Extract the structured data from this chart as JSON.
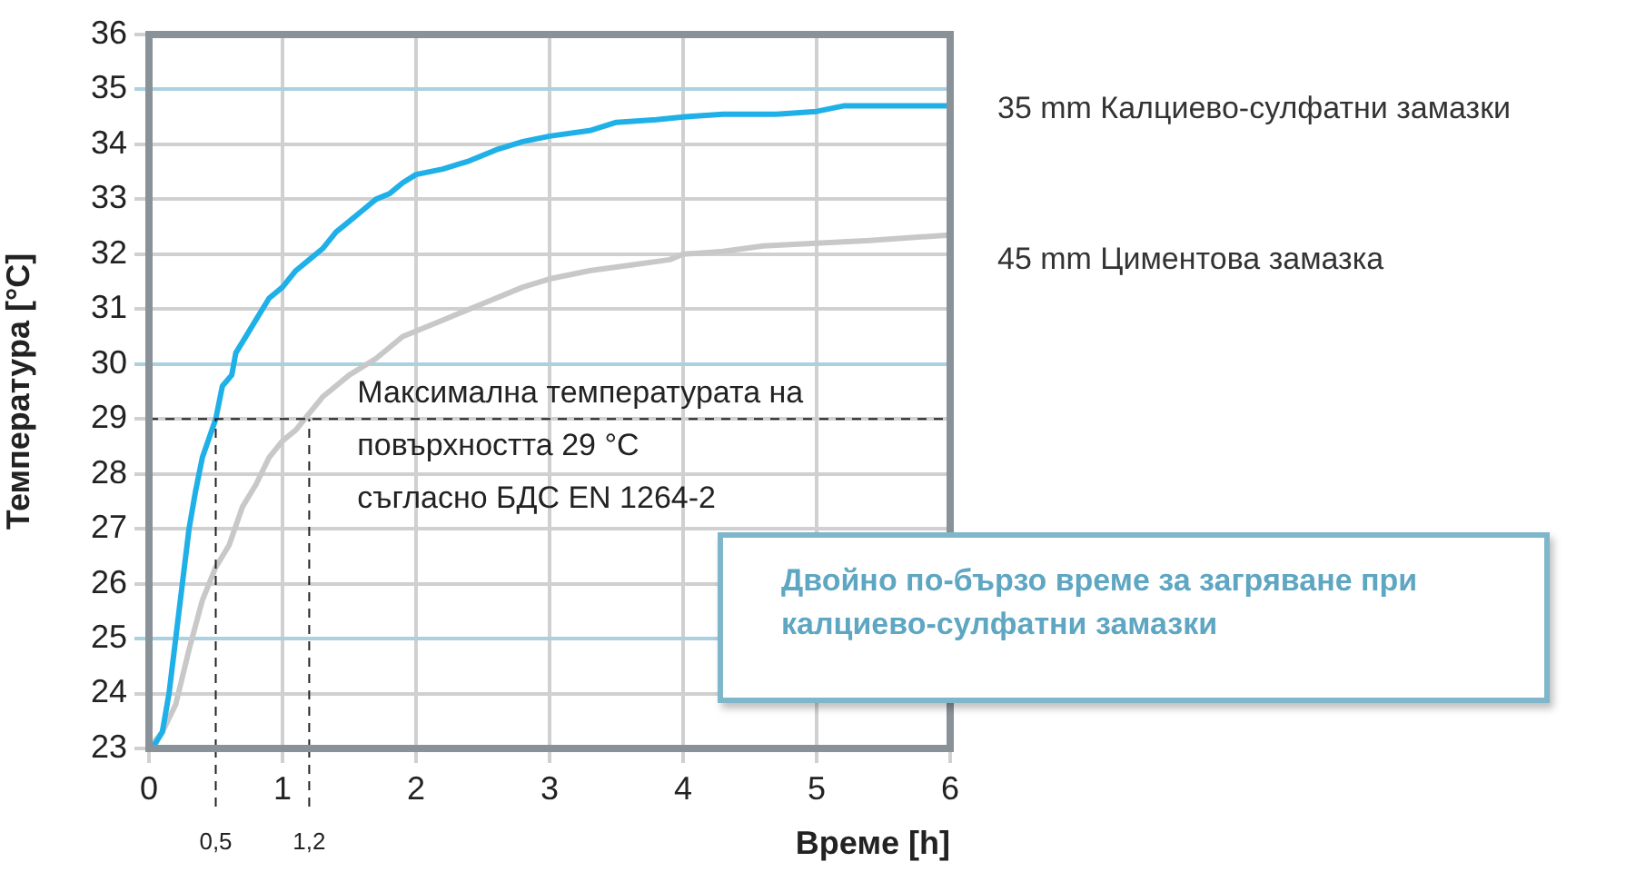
{
  "chart_data": {
    "type": "line",
    "ylabel": "Температура [°C]",
    "xlabel": "Време [h]",
    "xlim": [
      0,
      6
    ],
    "xticks": [
      0,
      1,
      2,
      3,
      4,
      5,
      6
    ],
    "ylim": [
      23,
      36
    ],
    "yticks": [
      23,
      24,
      25,
      26,
      27,
      28,
      29,
      30,
      31,
      32,
      33,
      34,
      35,
      36
    ],
    "grid": true,
    "legend": false,
    "marker": "none",
    "line_style": "solid",
    "series": [
      {
        "name": "35 mm Калциево-сулфатни замазки",
        "color": "#1fb0e8",
        "x": [
          0,
          0.05,
          0.1,
          0.15,
          0.2,
          0.25,
          0.3,
          0.35,
          0.4,
          0.5,
          0.55,
          0.62,
          0.65,
          0.7,
          0.8,
          0.9,
          1.0,
          1.1,
          1.2,
          1.3,
          1.4,
          1.5,
          1.6,
          1.7,
          1.8,
          1.9,
          2.0,
          2.2,
          2.4,
          2.6,
          2.8,
          3.0,
          3.3,
          3.5,
          3.8,
          4.0,
          4.3,
          4.7,
          5.0,
          5.2,
          6.0
        ],
        "values": [
          23.0,
          23.1,
          23.3,
          24.0,
          25.0,
          26.0,
          27.0,
          27.7,
          28.3,
          29.0,
          29.6,
          29.8,
          30.2,
          30.4,
          30.8,
          31.2,
          31.4,
          31.7,
          31.9,
          32.1,
          32.4,
          32.6,
          32.8,
          33.0,
          33.1,
          33.3,
          33.45,
          33.55,
          33.7,
          33.9,
          34.05,
          34.15,
          34.25,
          34.4,
          34.45,
          34.5,
          34.55,
          34.55,
          34.6,
          34.7,
          34.7
        ]
      },
      {
        "name": "45 mm Циментова замазка",
        "color": "#c8c8c8",
        "x": [
          0,
          0.1,
          0.2,
          0.3,
          0.4,
          0.5,
          0.6,
          0.7,
          0.8,
          0.9,
          1.0,
          1.1,
          1.2,
          1.3,
          1.5,
          1.7,
          1.9,
          2.0,
          2.2,
          2.5,
          2.8,
          3.0,
          3.3,
          3.6,
          3.9,
          4.0,
          4.3,
          4.6,
          5.0,
          5.4,
          6.0
        ],
        "values": [
          23.0,
          23.3,
          23.8,
          24.8,
          25.7,
          26.3,
          26.7,
          27.4,
          27.8,
          28.3,
          28.6,
          28.8,
          29.1,
          29.4,
          29.8,
          30.1,
          30.5,
          30.6,
          30.8,
          31.1,
          31.4,
          31.55,
          31.7,
          31.8,
          31.9,
          32.0,
          32.05,
          32.15,
          32.2,
          32.25,
          32.35
        ]
      }
    ],
    "ref_lines": [
      {
        "axis": "y",
        "value": 29,
        "color": "#222222",
        "line_style": "dashed",
        "label": "Максимална температурата на\nповърхността 29 °C\nсъгласно БДС EN 1264-2"
      },
      {
        "axis": "x",
        "value": 0.5,
        "color": "#222222",
        "line_style": "dashed",
        "label": "0,5"
      },
      {
        "axis": "x",
        "value": 1.2,
        "color": "#222222",
        "line_style": "dashed",
        "label": "1,2"
      }
    ],
    "annotations": [
      "Двойно по-бързо време за загряване при калциево-сулфатни замазки"
    ]
  }
}
